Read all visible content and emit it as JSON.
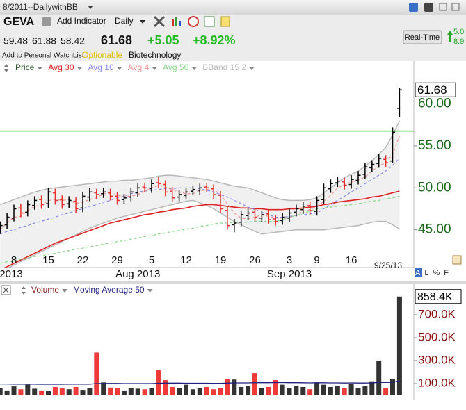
{
  "header": {
    "layout_name": "8/2011--DailywithBB",
    "symbol": "GEVA",
    "add_indicator": "Add Indicator",
    "period": "Daily",
    "change": "+5.05",
    "change_pct": "+8.92%",
    "realtime": "Real-Time",
    "watchlist": "Add to Personal WatchList",
    "optionable": "Optionable",
    "industry": "Biotechnology",
    "side": [
      "5.0",
      "8.9"
    ]
  },
  "chart_data": [
    {
      "type": "ohlc",
      "categories": [
        null,
        null,
        "8",
        null,
        null,
        null,
        null,
        "15",
        null,
        null,
        null,
        null,
        "22",
        null,
        null,
        null,
        null,
        "29",
        null,
        null,
        null,
        null,
        "5",
        null,
        null,
        null,
        null,
        "12",
        null,
        null,
        null,
        null,
        "19",
        null,
        null,
        null,
        null,
        "26",
        null,
        null,
        null,
        null,
        "3",
        null,
        null,
        null,
        "9",
        null,
        null,
        null,
        null,
        "16",
        null,
        null,
        null,
        null,
        null,
        null,
        null
      ],
      "months": [
        "2013",
        null,
        null,
        null,
        null,
        null,
        null,
        null,
        null,
        null,
        null,
        null,
        null,
        null,
        null,
        null,
        null,
        null,
        null,
        null,
        "Aug 2013",
        null,
        null,
        null,
        null,
        null,
        null,
        null,
        null,
        null,
        null,
        null,
        null,
        null,
        null,
        null,
        null,
        null,
        null,
        null,
        null,
        null,
        "Sep 2013",
        null,
        null,
        null,
        null,
        null,
        null,
        null,
        null,
        null,
        null,
        null,
        null,
        null,
        null,
        null,
        null
      ],
      "series": [
        {
          "name": "Price",
          "color": "#000000",
          "down_color": "#e8302a",
          "open": [
            45.0,
            45.6,
            46.4,
            47.6,
            47.1,
            47.9,
            48.6,
            48.1,
            49.4,
            48.6,
            48.1,
            48.4,
            47.6,
            48.9,
            49.4,
            49.3,
            49.4,
            49.0,
            48.6,
            48.9,
            49.4,
            50.1,
            49.9,
            50.6,
            50.4,
            49.6,
            48.9,
            49.1,
            49.6,
            49.7,
            50.1,
            49.9,
            49.1,
            47.3,
            45.6,
            45.9,
            46.7,
            47.1,
            46.4,
            46.9,
            46.3,
            46.1,
            46.4,
            47.1,
            47.4,
            47.9,
            47.2,
            48.6,
            49.9,
            50.6,
            50.7,
            50.4,
            50.9,
            51.6,
            52.4,
            52.9,
            53.4,
            53.2,
            59.48
          ],
          "high": [
            46.0,
            47.0,
            48.0,
            48.1,
            48.5,
            49.0,
            49.1,
            50.0,
            49.9,
            49.1,
            49.0,
            48.9,
            49.5,
            50.0,
            49.9,
            50.0,
            49.9,
            49.5,
            49.3,
            50.0,
            50.5,
            50.6,
            51.0,
            51.3,
            50.9,
            50.1,
            49.7,
            50.0,
            50.3,
            50.5,
            50.6,
            50.4,
            49.6,
            47.8,
            46.3,
            47.3,
            47.5,
            47.6,
            47.3,
            47.4,
            46.8,
            47.0,
            47.5,
            48.0,
            48.3,
            48.4,
            49.0,
            50.5,
            51.0,
            51.3,
            51.2,
            51.5,
            52.0,
            53.0,
            53.3,
            54.0,
            53.9,
            57.2,
            61.88
          ],
          "low": [
            44.5,
            45.1,
            46.0,
            46.5,
            46.6,
            47.4,
            47.5,
            47.6,
            48.0,
            47.5,
            47.6,
            47.0,
            47.1,
            48.4,
            48.7,
            48.8,
            48.5,
            48.0,
            48.1,
            48.4,
            48.9,
            49.5,
            49.4,
            50.0,
            49.0,
            48.3,
            48.4,
            48.6,
            49.1,
            49.2,
            49.5,
            48.7,
            47.0,
            45.0,
            44.7,
            45.4,
            46.2,
            46.0,
            45.9,
            45.7,
            45.5,
            45.6,
            45.9,
            46.6,
            46.9,
            46.8,
            46.7,
            48.1,
            49.4,
            50.1,
            49.8,
            49.9,
            50.4,
            51.1,
            51.9,
            52.4,
            52.5,
            53.0,
            58.42
          ],
          "close": [
            45.5,
            46.5,
            47.5,
            47.0,
            48.0,
            48.5,
            48.0,
            49.5,
            48.5,
            48.0,
            48.5,
            47.5,
            49.0,
            49.5,
            49.2,
            49.5,
            49.0,
            48.5,
            48.8,
            49.5,
            50.0,
            50.0,
            50.5,
            50.5,
            49.5,
            48.8,
            49.2,
            49.5,
            49.8,
            50.0,
            50.0,
            49.2,
            47.5,
            45.5,
            45.8,
            46.8,
            47.0,
            46.5,
            46.8,
            46.2,
            46.0,
            46.5,
            47.0,
            47.5,
            47.8,
            47.3,
            48.5,
            50.0,
            50.5,
            50.8,
            50.3,
            51.0,
            51.5,
            52.5,
            52.8,
            53.5,
            53.0,
            56.63,
            61.68
          ]
        }
      ],
      "indicators": [
        {
          "name": "Avg 30",
          "color": "#e02020",
          "dashed": false,
          "values": [
            40.2,
            40.6,
            41.0,
            41.4,
            41.8,
            42.2,
            42.6,
            43.0,
            43.4,
            43.7,
            44.0,
            44.3,
            44.6,
            44.9,
            45.2,
            45.5,
            45.8,
            46.0,
            46.2,
            46.4,
            46.6,
            46.8,
            46.9,
            47.1,
            47.2,
            47.4,
            47.5,
            47.6,
            47.8,
            47.9,
            48.0,
            48.0,
            47.9,
            47.8,
            47.7,
            47.6,
            47.6,
            47.5,
            47.5,
            47.4,
            47.4,
            47.4,
            47.5,
            47.5,
            47.6,
            47.7,
            47.8,
            48.0,
            48.1,
            48.3,
            48.4,
            48.5,
            48.6,
            48.7,
            48.9,
            49.0,
            49.2,
            49.4,
            49.6
          ]
        },
        {
          "name": "Avg 10",
          "color": "#8888e8",
          "dashed": true,
          "values": [
            44.5,
            44.8,
            45.0,
            45.3,
            45.5,
            45.8,
            46.0,
            46.3,
            46.5,
            46.8,
            47.0,
            47.3,
            47.5,
            47.8,
            48.0,
            48.3,
            48.5,
            48.8,
            49.0,
            49.3,
            49.5,
            49.6,
            49.7,
            49.8,
            49.9,
            49.9,
            50.0,
            50.0,
            50.0,
            49.9,
            49.7,
            49.5,
            49.2,
            48.9,
            48.5,
            48.1,
            47.7,
            47.4,
            47.1,
            46.8,
            46.5,
            46.5,
            46.6,
            46.7,
            46.8,
            46.9,
            47.0,
            47.5,
            48.0,
            48.5,
            49.0,
            49.5,
            50.0,
            50.5,
            51.0,
            51.5,
            52.0,
            52.7,
            53.5
          ]
        },
        {
          "name": "Avg 4",
          "color": "#f09090",
          "dashed": true,
          "values": [
            45.0,
            45.8,
            46.5,
            46.6,
            47.3,
            47.8,
            47.9,
            48.5,
            48.6,
            48.5,
            48.6,
            48.1,
            48.3,
            48.6,
            48.8,
            49.3,
            49.3,
            49.1,
            49.0,
            49.0,
            49.2,
            49.6,
            50.0,
            50.3,
            50.1,
            49.8,
            49.5,
            49.3,
            49.3,
            49.6,
            49.8,
            49.8,
            49.2,
            48.1,
            47.0,
            46.4,
            46.3,
            46.5,
            46.8,
            46.6,
            46.4,
            46.4,
            46.4,
            46.8,
            47.2,
            47.4,
            47.8,
            48.4,
            49.1,
            50.0,
            50.4,
            50.7,
            50.9,
            51.3,
            52.0,
            52.6,
            53.0,
            54.0,
            56.2
          ]
        },
        {
          "name": "Avg 50",
          "color": "#88d888",
          "dashed": true,
          "values": [
            41.0,
            41.2,
            41.3,
            41.5,
            41.6,
            41.8,
            41.9,
            42.1,
            42.2,
            42.4,
            42.5,
            42.7,
            42.8,
            43.0,
            43.1,
            43.3,
            43.4,
            43.6,
            43.7,
            43.9,
            44.0,
            44.2,
            44.3,
            44.5,
            44.6,
            44.8,
            44.9,
            45.1,
            45.2,
            45.4,
            45.5,
            45.7,
            45.8,
            45.8,
            45.9,
            45.9,
            45.9,
            46.0,
            46.0,
            46.0,
            46.0,
            46.2,
            46.5,
            46.7,
            47.0,
            47.2,
            47.5,
            47.6,
            47.7,
            47.8,
            47.9,
            48.0,
            48.1,
            48.3,
            48.4,
            48.5,
            48.7,
            48.8,
            49.0
          ]
        },
        {
          "name": "BBand 15 2",
          "color": "#b8b8b8",
          "fill": "#f0f0f0",
          "upper": [
            48.0,
            48.3,
            48.6,
            48.9,
            49.2,
            49.5,
            49.7,
            49.9,
            50.0,
            50.1,
            50.2,
            50.3,
            50.4,
            50.5,
            50.6,
            50.7,
            50.8,
            50.8,
            50.9,
            50.9,
            51.0,
            51.1,
            51.2,
            51.4,
            51.5,
            51.5,
            51.4,
            51.3,
            51.2,
            51.1,
            51.0,
            50.8,
            50.6,
            50.4,
            50.2,
            50.1,
            50.0,
            49.7,
            49.4,
            49.1,
            48.8,
            48.6,
            48.5,
            48.5,
            48.5,
            48.6,
            48.8,
            49.4,
            50.0,
            50.6,
            51.2,
            51.6,
            52.0,
            52.6,
            53.2,
            54.0,
            54.8,
            56.3,
            58.0
          ],
          "lower": [
            40.0,
            40.4,
            40.8,
            41.2,
            41.6,
            42.0,
            42.4,
            42.8,
            43.2,
            43.6,
            44.0,
            44.4,
            44.8,
            45.2,
            45.5,
            45.8,
            46.1,
            46.4,
            46.6,
            46.8,
            47.0,
            47.2,
            47.4,
            47.6,
            47.8,
            48.0,
            48.2,
            48.4,
            48.5,
            48.2,
            47.9,
            47.5,
            47.0,
            46.5,
            46.0,
            45.6,
            45.2,
            44.8,
            44.5,
            44.6,
            44.7,
            44.8,
            44.9,
            45.0,
            45.0,
            45.0,
            45.0,
            45.0,
            45.1,
            45.2,
            45.3,
            45.4,
            45.5,
            45.7,
            45.9,
            46.0,
            46.0,
            45.6,
            45.1
          ]
        }
      ],
      "ylim": [
        40.5,
        65.1
      ],
      "yticks": [
        {
          "value": 45,
          "label": "45.00"
        },
        {
          "value": 50,
          "label": "50.00"
        },
        {
          "value": 55,
          "label": "55.00"
        },
        {
          "value": 60,
          "label": "60.00"
        }
      ],
      "hline": {
        "value": 56.77,
        "color": "#33cc33"
      },
      "date_label": "9/25/13",
      "controls": [
        "A",
        "L",
        "%",
        "F"
      ]
    },
    {
      "type": "bar",
      "series": [
        {
          "name": "Volume",
          "color": "#333333",
          "down_color": "#f03a3a",
          "values": [
            60000,
            40000,
            75000,
            50000,
            90000,
            55000,
            40000,
            35000,
            70000,
            60000,
            50000,
            70000,
            45000,
            60000,
            370000,
            110000,
            65000,
            60000,
            40000,
            60000,
            55000,
            50000,
            60000,
            215000,
            130000,
            70000,
            60000,
            90000,
            50000,
            60000,
            70000,
            50000,
            60000,
            140000,
            135000,
            70000,
            80000,
            190000,
            60000,
            70000,
            130000,
            90000,
            60000,
            80000,
            70000,
            50000,
            110000,
            90000,
            70000,
            80000,
            60000,
            100000,
            60000,
            80000,
            120000,
            300000,
            60000,
            142000,
            858400
          ],
          "value_labels": [
            null,
            null,
            null,
            null,
            null,
            null,
            null,
            null,
            null,
            null,
            null,
            null,
            null,
            null,
            null,
            null,
            null,
            null,
            null,
            null,
            null,
            null,
            null,
            null,
            null,
            null,
            null,
            null,
            null,
            null,
            null,
            null,
            null,
            null,
            null,
            null,
            null,
            null,
            null,
            null,
            null,
            null,
            null,
            null,
            null,
            null,
            null,
            null,
            null,
            null,
            null,
            null,
            null,
            null,
            null,
            null,
            null,
            null,
            "858.4K"
          ]
        },
        {
          "name": "Moving Average 50",
          "color": "#202080",
          "values": [
            96000,
            96000,
            95000,
            95000,
            95000,
            95000,
            94000,
            94000,
            94000,
            94000,
            95000,
            95000,
            95000,
            95000,
            100000,
            101000,
            101000,
            101000,
            100000,
            100000,
            100000,
            100000,
            100000,
            103000,
            104000,
            104000,
            104000,
            103000,
            103000,
            103000,
            103000,
            102000,
            102000,
            104000,
            106000,
            106000,
            106000,
            108000,
            108000,
            108000,
            109000,
            109000,
            108000,
            108000,
            107000,
            106000,
            107000,
            107000,
            106000,
            106000,
            105000,
            106000,
            105000,
            105000,
            106000,
            110000,
            110000,
            111000,
            125000
          ]
        }
      ],
      "ylim": [
        0,
        960000
      ],
      "yticks": [
        {
          "value": 100000,
          "label": "100.0K"
        },
        {
          "value": 300000,
          "label": "300.0K"
        },
        {
          "value": 500000,
          "label": "500.0K"
        },
        {
          "value": 700000,
          "label": "700.0K"
        }
      ]
    }
  ]
}
